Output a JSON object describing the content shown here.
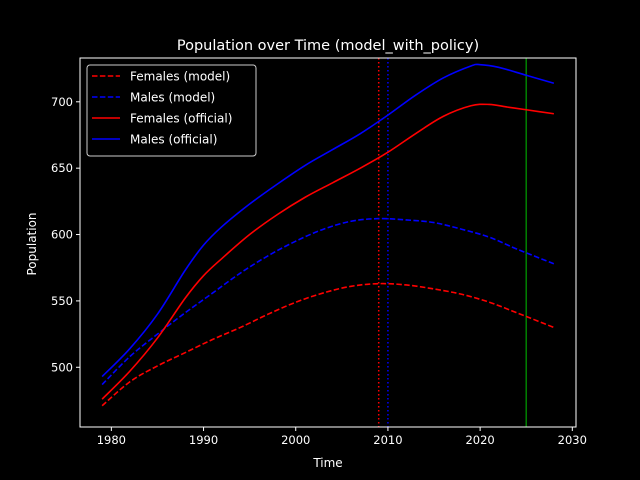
{
  "chart_data": {
    "type": "line",
    "title": "Population over Time (model_with_policy)",
    "xlabel": "Time",
    "ylabel": "Population",
    "xlim": [
      1976.6,
      2030.4
    ],
    "ylim": [
      455,
      733
    ],
    "xticks": [
      1980,
      1990,
      2000,
      2010,
      2020,
      2030
    ],
    "yticks": [
      500,
      550,
      600,
      650,
      700
    ],
    "grid": false,
    "legend_position": "top-left",
    "background": "#000000",
    "foreground": "#ffffff",
    "series": [
      {
        "name": "Females (model)",
        "color": "#ff0000",
        "dash": "dashed",
        "x": [
          1979,
          1982,
          1985,
          1988,
          1991,
          1994,
          1997,
          2000,
          2003,
          2006,
          2009,
          2012,
          2015,
          2018,
          2021,
          2024,
          2028
        ],
        "y": [
          471,
          489,
          501,
          511,
          521,
          530,
          540,
          549,
          556,
          561,
          563,
          562,
          559,
          555,
          549,
          541,
          530
        ]
      },
      {
        "name": "Males (model)",
        "color": "#0000ff",
        "dash": "dashed",
        "x": [
          1979,
          1982,
          1985,
          1988,
          1991,
          1994,
          1997,
          2000,
          2003,
          2006,
          2009,
          2012,
          2015,
          2018,
          2021,
          2024,
          2028
        ],
        "y": [
          487,
          508,
          525,
          541,
          556,
          571,
          584,
          595,
          604,
          610,
          612,
          611,
          609,
          604,
          598,
          589,
          578
        ]
      },
      {
        "name": "Females (official)",
        "color": "#ff0000",
        "dash": "solid",
        "x": [
          1979,
          1982,
          1985,
          1988,
          1990,
          1992,
          1995,
          1998,
          2001,
          2004,
          2007,
          2010,
          2013,
          2016,
          2019,
          2021,
          2023,
          2025,
          2028
        ],
        "y": [
          476,
          497,
          522,
          552,
          569,
          582,
          600,
          615,
          628,
          639,
          650,
          662,
          676,
          689,
          697,
          698,
          696,
          694,
          691
        ]
      },
      {
        "name": "Males (official)",
        "color": "#0000ff",
        "dash": "solid",
        "x": [
          1979,
          1982,
          1985,
          1988,
          1990,
          1992,
          1995,
          1998,
          2001,
          2004,
          2007,
          2010,
          2013,
          2016,
          2019,
          2020,
          2022,
          2025,
          2028
        ],
        "y": [
          493,
          514,
          540,
          573,
          592,
          606,
          623,
          638,
          652,
          664,
          676,
          690,
          705,
          718,
          727,
          728,
          726,
          720,
          714
        ]
      }
    ],
    "vertical_lines": [
      {
        "x": 2009,
        "color": "#ff0000",
        "style": "dotted"
      },
      {
        "x": 2010,
        "color": "#0000ff",
        "style": "dotted"
      },
      {
        "x": 2025,
        "color": "#008000",
        "style": "solid"
      }
    ]
  }
}
